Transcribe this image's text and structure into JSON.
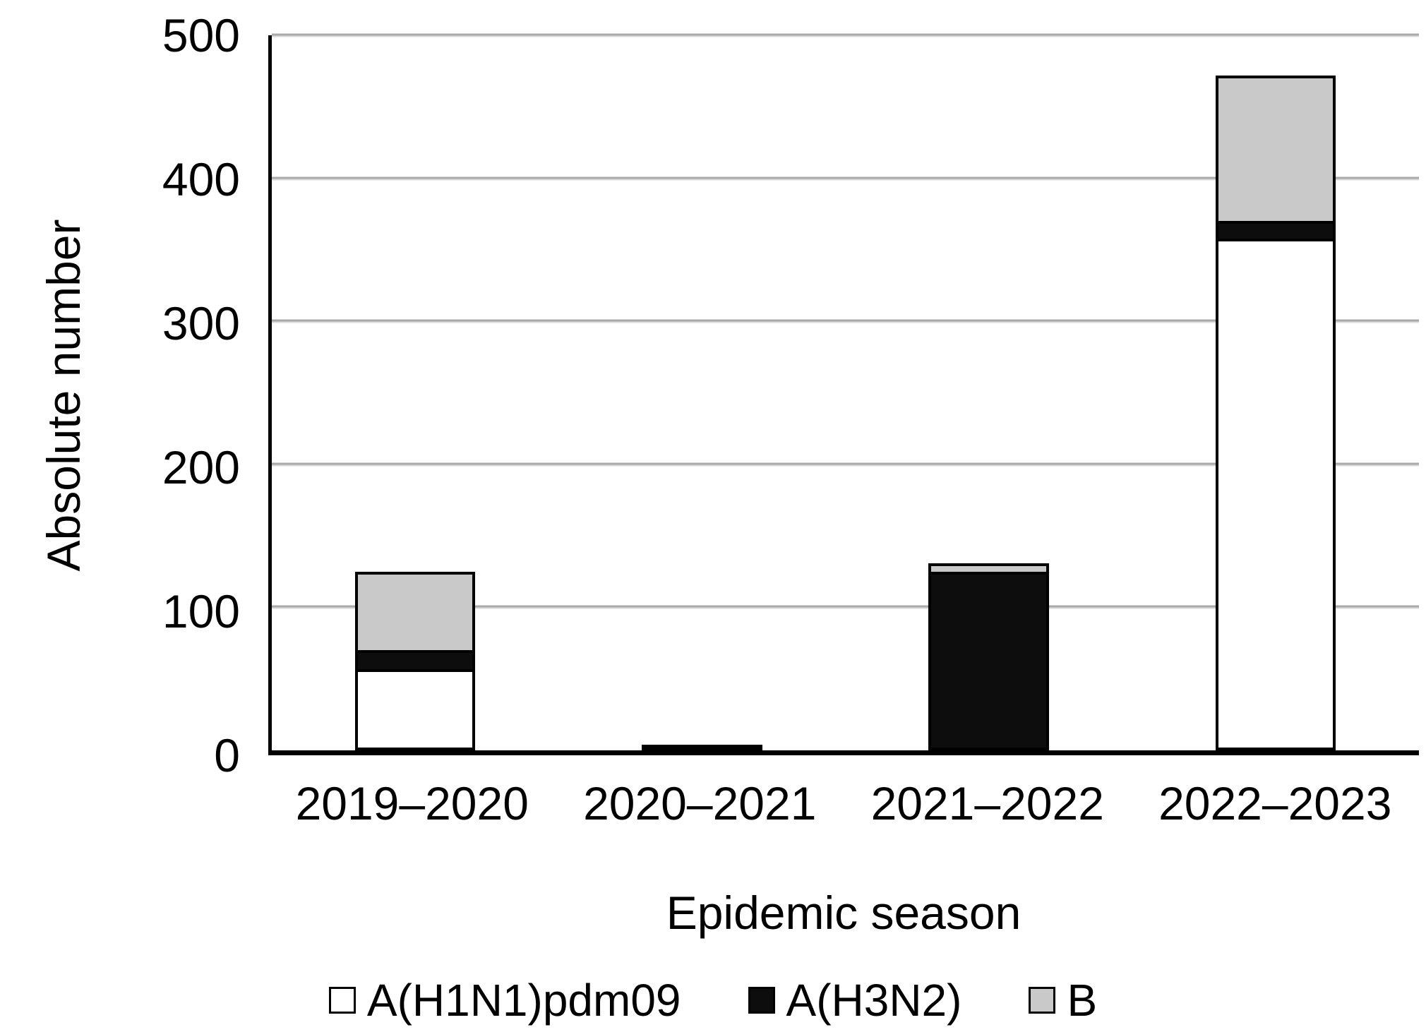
{
  "chart_data": {
    "type": "bar",
    "stacked": true,
    "title": "",
    "xlabel": "Epidemic season",
    "ylabel": "Absolute number",
    "categories": [
      "2019–2020",
      "2020–2021",
      "2021–2022",
      "2022–2023"
    ],
    "series": [
      {
        "name": "A(H1N1)pdm09",
        "color": "#ffffff",
        "values": [
          57,
          0,
          0,
          358
        ]
      },
      {
        "name": "A(H3N2)",
        "color": "#0d0d0d",
        "values": [
          13,
          3,
          125,
          12
        ]
      },
      {
        "name": "B",
        "color": "#c9c9c9",
        "values": [
          55,
          0,
          6,
          102
        ]
      }
    ],
    "ylim": [
      0,
      500
    ],
    "yticks": [
      0,
      100,
      200,
      300,
      400,
      500
    ],
    "grid": true,
    "legend_position": "bottom",
    "axis_color": "#000000",
    "gridline_color": "#a9a9a9"
  }
}
